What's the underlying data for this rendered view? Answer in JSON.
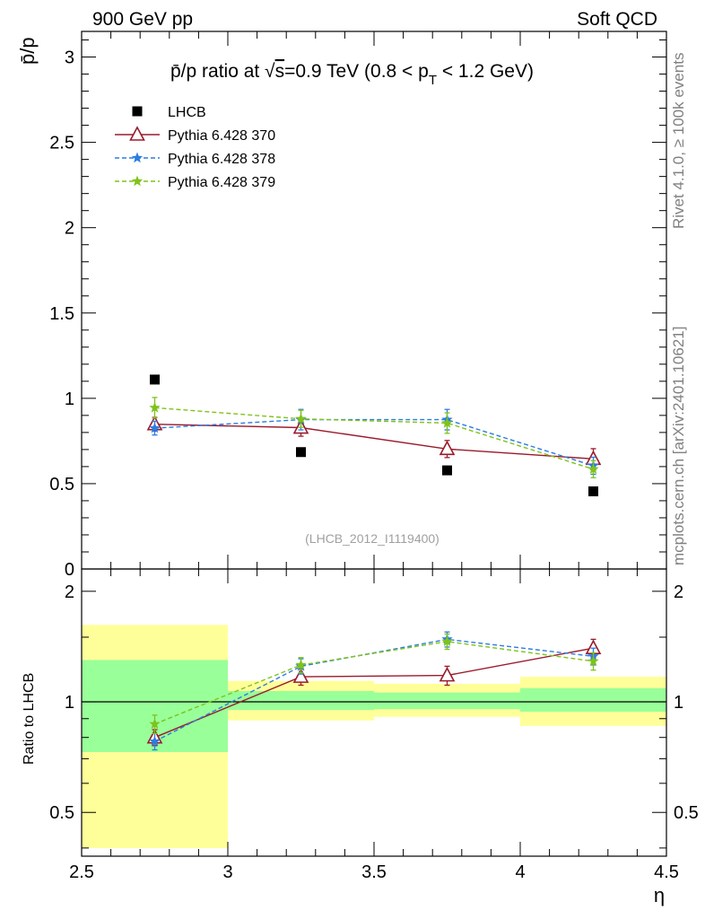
{
  "header": {
    "left": "900 GeV pp",
    "right": "Soft QCD"
  },
  "side_text": {
    "rivet": "Rivet 4.1.0, ≥ 100k events",
    "mcplots": "mcplots.cern.ch [arXiv:2401.10621]"
  },
  "colors": {
    "data": "#000000",
    "mc370": "#9a1b2c",
    "mc378": "#2b7de0",
    "mc379": "#7fc31a",
    "band_inner": "#99ff99",
    "band_outer": "#ffff99"
  },
  "chart_data": [
    {
      "type": "scatter",
      "panel": "main",
      "title": "p̄/p ratio at √s=0.9 TeV (0.8 < pT < 1.2 GeV)",
      "title_parts": {
        "before": "p̄/p ratio at √",
        "s": "s",
        "mid": "=0.9 TeV (0.8 < p",
        "sub": "T",
        "after": " < 1.2 GeV)"
      },
      "ylabel": "p̄/p",
      "xlim": [
        2.5,
        4.5
      ],
      "ylim": [
        0,
        3.15
      ],
      "y_ticks": [
        0,
        0.5,
        1,
        1.5,
        2,
        2.5,
        3
      ],
      "y_tick_labels": [
        "0",
        "0.5",
        "1",
        "1.5",
        "2",
        "2.5",
        "3"
      ],
      "watermark": "(LHCB_2012_I1119400)",
      "legend_position": "top-left",
      "x": [
        2.75,
        3.25,
        3.75,
        4.25
      ],
      "series": [
        {
          "name": "LHCB",
          "key": "data",
          "marker": "square",
          "values": [
            1.11,
            0.685,
            0.578,
            0.455
          ],
          "errors": [
            0,
            0,
            0,
            0
          ]
        },
        {
          "name": "Pythia 6.428 370",
          "key": "mc370",
          "marker": "triangle",
          "line": "solid",
          "values": [
            0.848,
            0.828,
            0.703,
            0.645
          ],
          "errors": [
            0.04,
            0.05,
            0.05,
            0.06
          ]
        },
        {
          "name": "Pythia 6.428 378",
          "key": "mc378",
          "marker": "star",
          "line": "dashed",
          "values": [
            0.825,
            0.875,
            0.875,
            0.605
          ],
          "errors": [
            0.04,
            0.06,
            0.06,
            0.05
          ]
        },
        {
          "name": "Pythia 6.428 379",
          "key": "mc379",
          "marker": "star",
          "line": "dashed",
          "values": [
            0.945,
            0.88,
            0.855,
            0.585
          ],
          "errors": [
            0.06,
            0.05,
            0.06,
            0.05
          ]
        }
      ]
    },
    {
      "type": "scatter",
      "panel": "ratio",
      "ylabel": "Ratio to LHCB",
      "xlabel": "η",
      "xlim": [
        2.5,
        4.5
      ],
      "ylim": [
        0.38,
        2.3
      ],
      "y_ticks": [
        0.5,
        1,
        2
      ],
      "y_tick_labels": [
        "0.5",
        "1",
        "2"
      ],
      "x_ticks": [
        2.5,
        3,
        3.5,
        4,
        4.5
      ],
      "x_tick_labels": [
        "2.5",
        "3",
        "3.5",
        "4",
        "4.5"
      ],
      "reference_line": 1,
      "bins": [
        [
          2.5,
          3.0
        ],
        [
          3.0,
          3.5
        ],
        [
          3.5,
          4.0
        ],
        [
          4.0,
          4.5
        ]
      ],
      "band_inner": [
        [
          0.73,
          1.3
        ],
        [
          0.95,
          1.07
        ],
        [
          0.955,
          1.06
        ],
        [
          0.94,
          1.09
        ]
      ],
      "band_outer": [
        [
          0.4,
          1.62
        ],
        [
          0.89,
          1.14
        ],
        [
          0.91,
          1.12
        ],
        [
          0.86,
          1.17
        ]
      ],
      "x": [
        2.75,
        3.25,
        3.75,
        4.25
      ],
      "series": [
        {
          "name": "Pythia 6.428 370",
          "key": "mc370",
          "marker": "triangle",
          "line": "solid",
          "values": [
            0.8,
            1.17,
            1.18,
            1.4
          ],
          "errors": [
            0.04,
            0.06,
            0.07,
            0.08
          ]
        },
        {
          "name": "Pythia 6.428 378",
          "key": "mc378",
          "marker": "star",
          "line": "dashed",
          "values": [
            0.78,
            1.25,
            1.48,
            1.33
          ],
          "errors": [
            0.04,
            0.06,
            0.07,
            0.07
          ]
        },
        {
          "name": "Pythia 6.428 379",
          "key": "mc379",
          "marker": "star",
          "line": "dashed",
          "values": [
            0.87,
            1.26,
            1.46,
            1.29
          ],
          "errors": [
            0.05,
            0.06,
            0.07,
            0.07
          ]
        }
      ]
    }
  ]
}
